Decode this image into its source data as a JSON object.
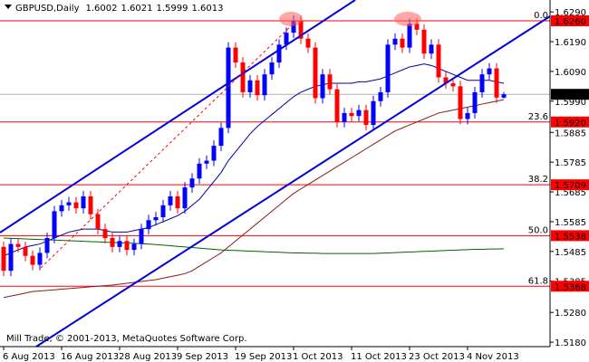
{
  "chart_data": {
    "type": "candlestick",
    "symbol": "GBPUSD,Daily",
    "footer": "Mill Trade, © 2001-2013, MetaQuotes Software Corp.",
    "categories": [
      "6 Aug 2013",
      null,
      null,
      null,
      null,
      null,
      null,
      null,
      "16 Aug 2013",
      null,
      null,
      null,
      null,
      null,
      null,
      null,
      "28 Aug 2013",
      null,
      null,
      null,
      null,
      null,
      null,
      null,
      "9 Sep 2013",
      null,
      null,
      null,
      null,
      null,
      null,
      null,
      "19 Sep 2013",
      null,
      null,
      null,
      null,
      null,
      null,
      null,
      "1 Oct 2013",
      null,
      null,
      null,
      null,
      null,
      null,
      null,
      "11 Oct 2013",
      null,
      null,
      null,
      null,
      null,
      null,
      null,
      "23 Oct 2013",
      null,
      null,
      null,
      null,
      null,
      null,
      null,
      "4 Nov 2013",
      null,
      null,
      null,
      null,
      null
    ],
    "open": [
      1.55,
      1.542,
      1.551,
      1.55,
      1.547,
      1.544,
      1.548,
      1.553,
      1.562,
      1.564,
      1.565,
      1.563,
      1.567,
      1.561,
      1.556,
      1.553,
      1.55,
      1.552,
      1.549,
      1.551,
      1.556,
      1.559,
      1.56,
      1.564,
      1.567,
      1.563,
      1.57,
      1.573,
      1.578,
      1.579,
      1.584,
      1.59,
      1.617,
      1.612,
      1.602,
      1.606,
      1.601,
      1.608,
      1.612,
      1.618,
      1.622,
      1.626,
      1.62,
      1.617,
      1.6,
      1.608,
      1.603,
      1.592,
      1.595,
      1.594,
      1.596,
      1.591,
      1.599,
      1.602,
      1.618,
      1.62,
      1.617,
      1.625,
      1.623,
      1.615,
      1.618,
      1.607,
      1.605,
      1.604,
      1.593,
      1.595,
      1.602,
      1.608,
      1.61,
      1.6002
    ],
    "high": [
      1.5518,
      1.5528,
      1.5528,
      1.5518,
      1.5488,
      1.5498,
      1.5548,
      1.5638,
      1.5658,
      1.5668,
      1.5668,
      1.5688,
      1.5688,
      1.5628,
      1.5578,
      1.5548,
      1.5538,
      1.5538,
      1.5528,
      1.5578,
      1.5608,
      1.5618,
      1.5658,
      1.5688,
      1.5688,
      1.5718,
      1.5748,
      1.5798,
      1.5808,
      1.5858,
      1.5918,
      1.6188,
      1.6188,
      1.6138,
      1.6078,
      1.6078,
      1.6098,
      1.6138,
      1.6198,
      1.6238,
      1.6278,
      1.6278,
      1.6218,
      1.6188,
      1.6098,
      1.6098,
      1.6048,
      1.5968,
      1.5968,
      1.5978,
      1.5978,
      1.6008,
      1.6038,
      1.6198,
      1.6218,
      1.6218,
      1.6268,
      1.6268,
      1.6248,
      1.6198,
      1.6198,
      1.6088,
      1.6068,
      1.6058,
      1.5968,
      1.6038,
      1.6098,
      1.6118,
      1.6118,
      1.6021
    ],
    "low": [
      1.5402,
      1.5402,
      1.5482,
      1.5452,
      1.5422,
      1.5422,
      1.5462,
      1.5512,
      1.5602,
      1.5622,
      1.5612,
      1.5612,
      1.5592,
      1.5542,
      1.5512,
      1.5482,
      1.5482,
      1.5472,
      1.5472,
      1.5492,
      1.5542,
      1.5572,
      1.5582,
      1.5622,
      1.5612,
      1.5612,
      1.5682,
      1.5712,
      1.5762,
      1.5772,
      1.5822,
      1.5882,
      1.6102,
      1.6002,
      1.6002,
      1.5992,
      1.5992,
      1.6062,
      1.6102,
      1.6162,
      1.6202,
      1.6182,
      1.6152,
      1.5982,
      1.5982,
      1.6012,
      1.5902,
      1.5902,
      1.5922,
      1.5922,
      1.5892,
      1.5892,
      1.5972,
      1.6002,
      1.6162,
      1.6152,
      1.6152,
      1.6212,
      1.6132,
      1.6132,
      1.6052,
      1.6032,
      1.6022,
      1.5912,
      1.5912,
      1.5932,
      1.6002,
      1.6062,
      1.5984,
      1.5999
    ],
    "close": [
      1.542,
      1.551,
      1.55,
      1.547,
      1.544,
      1.548,
      1.553,
      1.562,
      1.564,
      1.565,
      1.563,
      1.567,
      1.561,
      1.556,
      1.553,
      1.55,
      1.552,
      1.549,
      1.551,
      1.556,
      1.559,
      1.56,
      1.564,
      1.567,
      1.563,
      1.57,
      1.573,
      1.578,
      1.579,
      1.584,
      1.59,
      1.617,
      1.612,
      1.602,
      1.606,
      1.601,
      1.608,
      1.612,
      1.618,
      1.622,
      1.626,
      1.62,
      1.617,
      1.6,
      1.608,
      1.603,
      1.592,
      1.595,
      1.594,
      1.596,
      1.591,
      1.599,
      1.602,
      1.618,
      1.62,
      1.617,
      1.625,
      1.623,
      1.615,
      1.618,
      1.607,
      1.605,
      1.604,
      1.593,
      1.595,
      1.602,
      1.608,
      1.61,
      1.6002,
      1.6013
    ],
    "up_color": "#0000ff",
    "down_color": "#ff0000",
    "series": [
      {
        "color": "#0000a0",
        "values": [
          1.547,
          1.548,
          1.549,
          1.55,
          1.5505,
          1.551,
          1.552,
          1.553,
          1.554,
          1.555,
          1.5555,
          1.556,
          1.556,
          1.556,
          1.5555,
          1.555,
          1.555,
          1.555,
          1.5555,
          1.556,
          1.5565,
          1.5575,
          1.5585,
          1.5595,
          1.5605,
          1.562,
          1.564,
          1.566,
          1.569,
          1.572,
          1.575,
          1.579,
          1.582,
          1.585,
          1.588,
          1.5905,
          1.5925,
          1.5945,
          1.5965,
          1.5985,
          1.6005,
          1.602,
          1.603,
          1.604,
          1.6045,
          1.605,
          1.605,
          1.605,
          1.605,
          1.6055,
          1.6055,
          1.606,
          1.6065,
          1.6075,
          1.6085,
          1.6095,
          1.6105,
          1.611,
          1.6115,
          1.611,
          1.61,
          1.609,
          1.608,
          1.607,
          1.606,
          1.606,
          1.606,
          1.606,
          1.6055,
          1.605
        ]
      },
      {
        "color": "#8b1a1a",
        "values": [
          1.533,
          1.5335,
          1.534,
          1.5345,
          1.535,
          1.5352,
          1.5354,
          1.5356,
          1.5358,
          1.536,
          1.5362,
          1.5364,
          1.5366,
          1.5368,
          1.537,
          1.5372,
          1.5375,
          1.5378,
          1.5381,
          1.5384,
          1.5387,
          1.539,
          1.5395,
          1.54,
          1.5405,
          1.541,
          1.542,
          1.5435,
          1.545,
          1.5465,
          1.548,
          1.55,
          1.552,
          1.554,
          1.556,
          1.558,
          1.56,
          1.562,
          1.564,
          1.566,
          1.568,
          1.5695,
          1.571,
          1.5725,
          1.574,
          1.5755,
          1.577,
          1.5785,
          1.58,
          1.5815,
          1.583,
          1.5845,
          1.586,
          1.5875,
          1.589,
          1.59,
          1.591,
          1.592,
          1.593,
          1.594,
          1.595,
          1.5955,
          1.596,
          1.5965,
          1.597,
          1.5975,
          1.598,
          1.5985,
          1.599,
          1.5995
        ]
      },
      {
        "color": "#006400",
        "values": [
          1.553,
          1.5529,
          1.5528,
          1.5527,
          1.5526,
          1.5525,
          1.5524,
          1.5523,
          1.5522,
          1.5521,
          1.552,
          1.5519,
          1.5518,
          1.5517,
          1.5516,
          1.5515,
          1.5514,
          1.5513,
          1.5512,
          1.5511,
          1.551,
          1.5508,
          1.5506,
          1.5504,
          1.5502,
          1.55,
          1.5498,
          1.5496,
          1.5494,
          1.5492,
          1.549,
          1.5489,
          1.5488,
          1.5487,
          1.5486,
          1.5485,
          1.5484,
          1.5483,
          1.5482,
          1.5481,
          1.548,
          1.548,
          1.5479,
          1.5479,
          1.5478,
          1.5478,
          1.5478,
          1.5478,
          1.5478,
          1.5478,
          1.5478,
          1.5478,
          1.5479,
          1.548,
          1.5481,
          1.5482,
          1.5483,
          1.5484,
          1.5485,
          1.5486,
          1.5487,
          1.5488,
          1.5489,
          1.549,
          1.5491,
          1.5492,
          1.5492,
          1.5493,
          1.5493,
          1.5494
        ]
      }
    ],
    "levels": [
      {
        "price": {
          "value": 1.626,
          "label": "1.6260"
        },
        "ratio": {
          "value": 0,
          "label": "0.0"
        }
      },
      {
        "price": {
          "value": 1.592,
          "label": "1.5920"
        },
        "ratio": 23.6
      },
      {
        "price": 1.5709,
        "ratio": 38.2
      },
      {
        "price": 1.5538,
        "ratio": {
          "value": 50,
          "label": "50.0"
        }
      },
      {
        "price": 1.5368,
        "ratio": 61.8
      }
    ],
    "level_color": "#ff0000",
    "ylim": [
      1.5165,
      1.633
    ],
    "yticks": [
      {
        "value": 1.629,
        "label": "1.6290"
      },
      {
        "value": 1.619,
        "label": "1.6190"
      },
      {
        "value": 1.609,
        "label": "1.6090"
      },
      {
        "value": 1.599,
        "label": "1.5990"
      },
      1.5885,
      1.5785,
      1.5685,
      1.5585,
      1.5485,
      1.5385,
      {
        "value": 1.528,
        "label": "1.5280"
      },
      {
        "value": 1.518,
        "label": "1.5180"
      }
    ],
    "grid": false
  }
}
